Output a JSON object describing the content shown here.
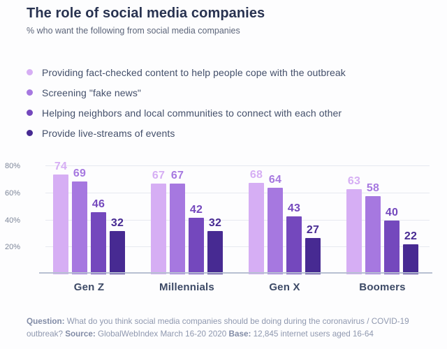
{
  "header": {
    "title": "The role of social media companies",
    "subtitle": "% who want the following from social media companies"
  },
  "chart_data": {
    "type": "bar",
    "title": "The role of social media companies",
    "subtitle": "% who want the following from social media companies",
    "categories": [
      "Gen Z",
      "Millennials",
      "Gen X",
      "Boomers"
    ],
    "series": [
      {
        "name": "Providing fact-checked content to help people cope with the outbreak",
        "color": "#d6aef4",
        "values": [
          74,
          67,
          68,
          63
        ]
      },
      {
        "name": "Screening \"fake news\"",
        "color": "#a678e0",
        "values": [
          69,
          67,
          64,
          58
        ]
      },
      {
        "name": "Helping neighbors and local communities to connect with each other",
        "color": "#7448bd",
        "values": [
          46,
          42,
          43,
          40
        ]
      },
      {
        "name": "Provide live-streams of events",
        "color": "#472a92",
        "values": [
          32,
          32,
          27,
          22
        ]
      }
    ],
    "y_ticks": [
      20,
      40,
      60,
      80
    ],
    "y_tick_suffix": "%",
    "ylim": [
      0,
      90
    ],
    "grid": true,
    "legend_position": "top-left",
    "colors": {
      "grid": "#e6e9f0",
      "axis": "#b7c0d2",
      "title": "#283250",
      "subtitle": "#5c657a",
      "legend_text": "#434f6a",
      "x_label": "#3d4a66",
      "y_tick": "#7d8699",
      "footer": "#8f98af"
    }
  },
  "footer": {
    "question_label": "Question:",
    "question_text": " What do you think social media companies should be doing during the coronavirus / COVID-19 outbreak? ",
    "source_label": "Source:",
    "source_text": " GlobalWebIndex March 16-20 2020 ",
    "base_label": "Base:",
    "base_text": " 12,845 internet users aged 16-64"
  }
}
